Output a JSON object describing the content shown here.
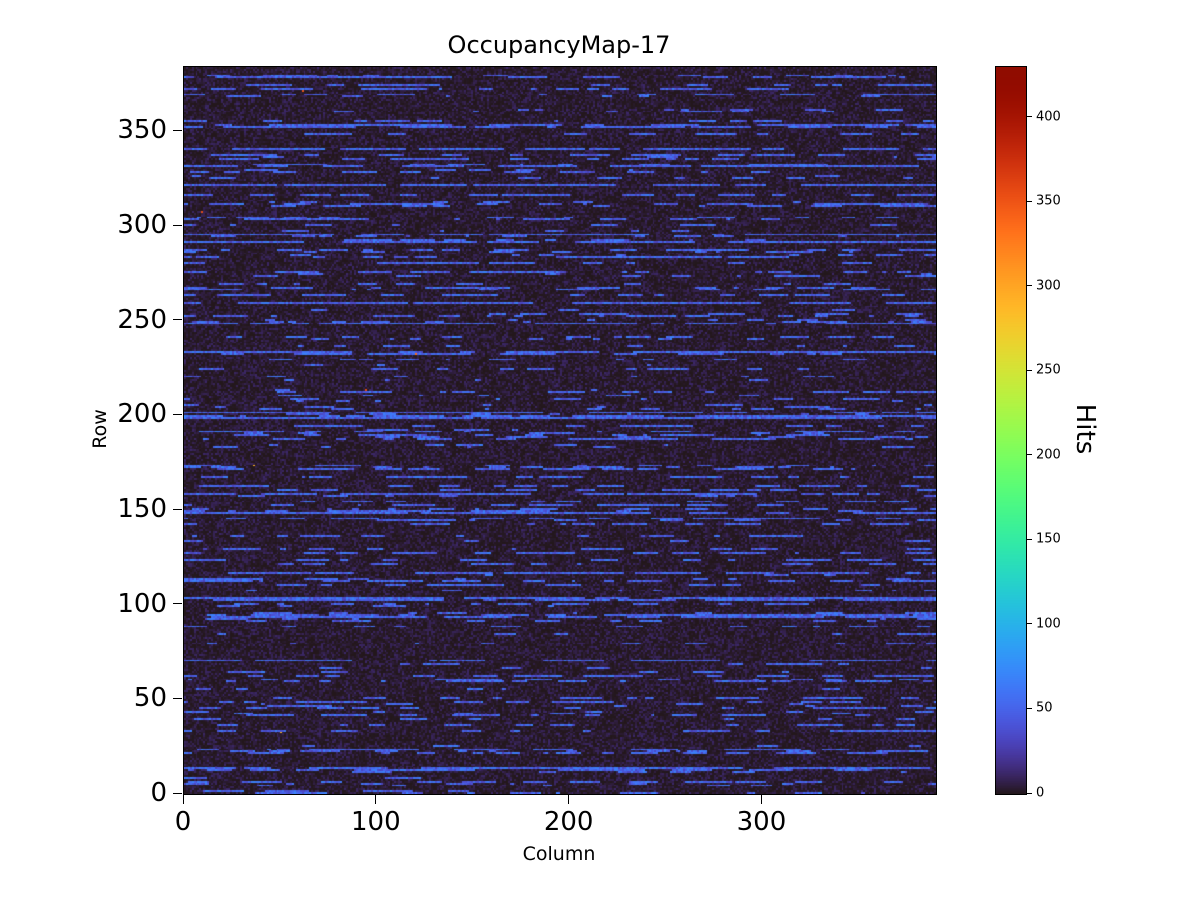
{
  "chart_data": {
    "type": "heatmap",
    "title": "OccupancyMap-17",
    "xlabel": "Column",
    "ylabel": "Row",
    "x_range": [
      0,
      390
    ],
    "y_range": [
      0,
      384
    ],
    "x_ticks": [
      0,
      100,
      200,
      300
    ],
    "y_ticks": [
      0,
      50,
      100,
      150,
      200,
      250,
      300,
      350
    ],
    "grid": false,
    "colormap": "turbo",
    "background_color": "#ffffff",
    "low_value_color": "#30123b",
    "streak_color": "#4466d8",
    "colorbar": {
      "label": "Hits",
      "ticks": [
        0,
        50,
        100,
        150,
        200,
        250,
        300,
        350,
        400
      ],
      "vmin": 0,
      "vmax": 430,
      "position": "right"
    },
    "description": "Dense ~390x384 detector occupancy heatmap. Background occupancy is near 0 hits (dark purple, turbo colormap minimum). Sparse horizontal dashed streaks of elevated occupancy (~30-70 hits, medium blue) appear on roughly 40% of rows; a few rows are nearly continuous lines. Rare isolated hot pixels reach the colorbar maximum (~430 hits).",
    "generator": {
      "seed": 1317,
      "n_cols": 390,
      "n_rows": 384,
      "streak_row_probability": 0.42,
      "dense_row_probability": 0.12,
      "dash_value_range": [
        30,
        70
      ],
      "dash_length_range": [
        2,
        14
      ],
      "gap_length_range": [
        2,
        20
      ],
      "background_max": 12,
      "hot_pixels": 6,
      "hot_value_range": [
        250,
        428
      ]
    }
  }
}
